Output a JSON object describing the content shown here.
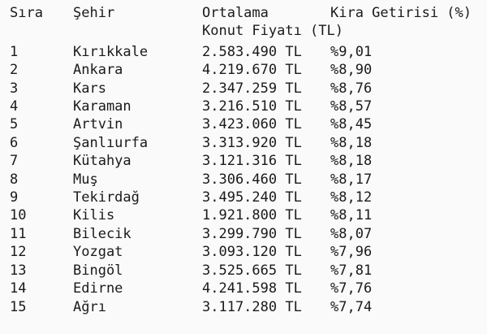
{
  "chart_data": {
    "type": "table",
    "title": "",
    "columns": [
      "Sıra",
      "Şehir",
      "Ortalama Konut Fiyatı (TL)",
      "Kira Getirisi (%)"
    ],
    "rows": [
      {
        "rank": "1",
        "city": "Kırıkkale",
        "price": "2.583.490 TL",
        "yield": "%9,01"
      },
      {
        "rank": "2",
        "city": "Ankara",
        "price": "4.219.670 TL",
        "yield": "%8,90"
      },
      {
        "rank": "3",
        "city": "Kars",
        "price": "2.347.259 TL",
        "yield": "%8,76"
      },
      {
        "rank": "4",
        "city": "Karaman",
        "price": "3.216.510 TL",
        "yield": "%8,57"
      },
      {
        "rank": "5",
        "city": "Artvin",
        "price": "3.423.060 TL",
        "yield": "%8,45"
      },
      {
        "rank": "6",
        "city": "Şanlıurfa",
        "price": "3.313.920 TL",
        "yield": "%8,18"
      },
      {
        "rank": "7",
        "city": "Kütahya",
        "price": "3.121.316 TL",
        "yield": "%8,18"
      },
      {
        "rank": "8",
        "city": "Muş",
        "price": "3.306.460 TL",
        "yield": "%8,17"
      },
      {
        "rank": "9",
        "city": "Tekirdağ",
        "price": "3.495.240 TL",
        "yield": "%8,12"
      },
      {
        "rank": "10",
        "city": "Kilis",
        "price": "1.921.800 TL",
        "yield": "%8,11"
      },
      {
        "rank": "11",
        "city": "Bilecik",
        "price": "3.299.790 TL",
        "yield": "%8,07"
      },
      {
        "rank": "12",
        "city": "Yozgat",
        "price": "3.093.120 TL",
        "yield": "%7,96"
      },
      {
        "rank": "13",
        "city": "Bingöl",
        "price": "3.525.665 TL",
        "yield": "%7,81"
      },
      {
        "rank": "14",
        "city": "Edirne",
        "price": "4.241.598 TL",
        "yield": "%7,76"
      },
      {
        "rank": "15",
        "city": "Ağrı",
        "price": "3.117.280 TL",
        "yield": "%7,74"
      }
    ]
  },
  "header_display": {
    "rank": "Sıra",
    "city": "Şehir",
    "price_line1": "Ortalama",
    "price_line2": "Konut Fiyatı (TL)",
    "yield": "Kira Getirisi (%)"
  }
}
